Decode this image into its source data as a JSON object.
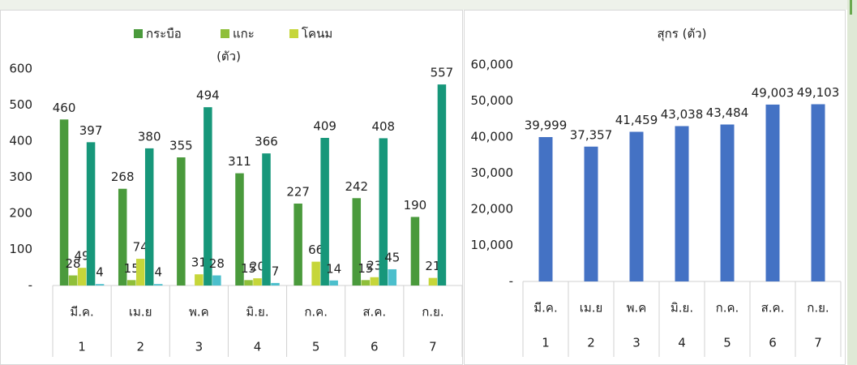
{
  "chart_data": [
    {
      "type": "bar",
      "ylabel": "(ตัว)",
      "categories": [
        "มี.ค.",
        "เม.ย",
        "พ.ค",
        "มิ.ย.",
        "ก.ค.",
        "ส.ค.",
        "ก.ย."
      ],
      "subcategories": [
        "1",
        "2",
        "3",
        "4",
        "5",
        "6",
        "7"
      ],
      "series": [
        {
          "name": "กระบือ",
          "color": "#4a9a3c",
          "values": [
            460,
            268,
            355,
            311,
            227,
            242,
            190
          ]
        },
        {
          "name": "แกะ",
          "color": "#8fbf3a",
          "values": [
            28,
            15,
            null,
            15,
            null,
            15,
            null
          ]
        },
        {
          "name": "โคนม",
          "color": "#c6d63a",
          "values": [
            49,
            74,
            31,
            20,
            66,
            23,
            21
          ]
        },
        {
          "color": "#17977a",
          "values": [
            397,
            380,
            494,
            366,
            409,
            408,
            557
          ]
        },
        {
          "color": "#4cbfcc",
          "values": [
            4,
            4,
            28,
            7,
            14,
            45,
            null
          ]
        }
      ],
      "ylim": [
        0,
        600
      ],
      "yticks": [
        {
          "value": 0,
          "label": "-"
        },
        100,
        200,
        300,
        400,
        500,
        600
      ],
      "legend": "top"
    },
    {
      "type": "bar",
      "title": "สุกร (ตัว)",
      "categories": [
        "มี.ค.",
        "เม.ย",
        "พ.ค",
        "มิ.ย.",
        "ก.ค.",
        "ส.ค.",
        "ก.ย."
      ],
      "subcategories": [
        "1",
        "2",
        "3",
        "4",
        "5",
        "6",
        "7"
      ],
      "series": [
        {
          "color": "#4472c4",
          "values": [
            39999,
            37357,
            41459,
            43038,
            43484,
            49003,
            49103
          ],
          "value_labels": [
            "39,999",
            "37,357",
            "41,459",
            "43,038",
            "43,484",
            "49,003",
            "49,103"
          ]
        }
      ],
      "ylim": [
        0,
        60000
      ],
      "yticks": [
        {
          "value": 0,
          "label": "-"
        },
        {
          "value": 10000,
          "label": "10,000"
        },
        {
          "value": 20000,
          "label": "20,000"
        },
        {
          "value": 30000,
          "label": "30,000"
        },
        {
          "value": 40000,
          "label": "40,000"
        },
        {
          "value": 50000,
          "label": "50,000"
        },
        {
          "value": 60000,
          "label": "60,000"
        }
      ]
    }
  ]
}
